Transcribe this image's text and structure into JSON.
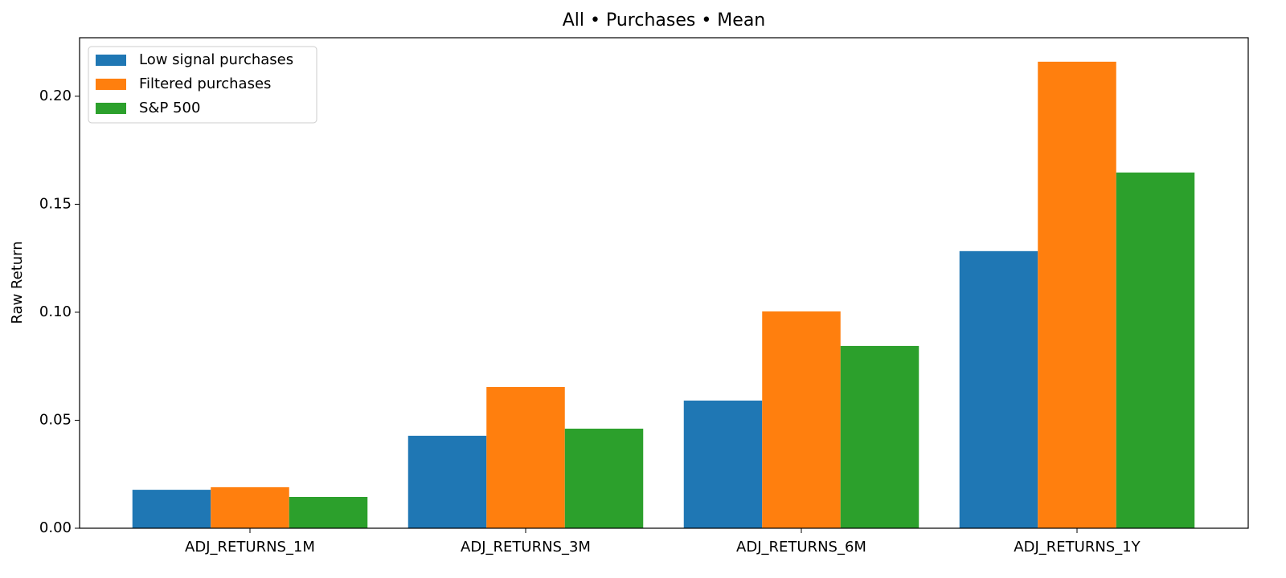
{
  "chart_data": {
    "type": "bar",
    "title": "All • Purchases • Mean",
    "ylabel": "Raw Return",
    "categories": [
      "ADJ_RETURNS_1M",
      "ADJ_RETURNS_3M",
      "ADJ_RETURNS_6M",
      "ADJ_RETURNS_1Y"
    ],
    "series": [
      {
        "name": "Low signal purchases",
        "color": "#1f77b4",
        "values": [
          0.0178,
          0.0428,
          0.0591,
          0.1283
        ]
      },
      {
        "name": "Filtered purchases",
        "color": "#ff7f0e",
        "values": [
          0.019,
          0.0654,
          0.1004,
          0.216
        ]
      },
      {
        "name": "S&P 500",
        "color": "#2ca02c",
        "values": [
          0.0145,
          0.0461,
          0.0844,
          0.1647
        ]
      }
    ],
    "ylim": [
      0,
      0.2271
    ],
    "yticks": [
      {
        "value": 0,
        "label": "0.00"
      },
      {
        "value": 0.05,
        "label": "0.05"
      },
      {
        "value": 0.1,
        "label": "0.10"
      },
      {
        "value": 0.15,
        "label": "0.15"
      },
      {
        "value": 0.2,
        "label": "0.20"
      }
    ],
    "legend": "upper left",
    "grid": false
  }
}
